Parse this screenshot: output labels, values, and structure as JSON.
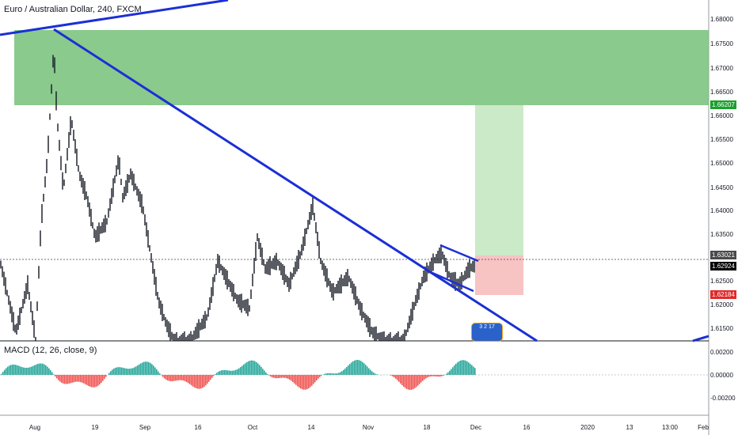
{
  "header": {
    "title": "Euro / Australian Dollar, 240, FXCM"
  },
  "indicator": {
    "label": "MACD (12, 26, close, 9)"
  },
  "price_axis": {
    "ticks": [
      "1.68000",
      "1.67500",
      "1.67000",
      "1.66500",
      "1.66000",
      "1.65500",
      "1.65000",
      "1.64500",
      "1.64000",
      "1.63500",
      "1.63000",
      "1.62500",
      "1.62000",
      "1.61500"
    ],
    "tags": [
      {
        "label": "1.66207",
        "color": "#1aa02c"
      },
      {
        "label": "1.63021",
        "color": "#4a4a4a"
      },
      {
        "label": "1.62924",
        "color": "#000000"
      },
      {
        "label": "1.62184",
        "color": "#e02b2b"
      }
    ]
  },
  "macd_axis": {
    "ticks": [
      "0.00200",
      "0.00000",
      "-0.00200"
    ]
  },
  "time_axis": {
    "ticks": [
      "Aug",
      "19",
      "Sep",
      "16",
      "Oct",
      "14",
      "Nov",
      "18",
      "Dec",
      "16",
      "2020",
      "13",
      "13:00",
      "Feb"
    ]
  },
  "badge": {
    "text": "3 2 17"
  },
  "colors": {
    "green_zone": "#7dc47f",
    "trend_line": "#1b2fd6",
    "target_zone": "#cbeac7",
    "stop_zone": "#f7c3c3",
    "macd_up": "#26a69a",
    "macd_down": "#ef5350"
  }
}
